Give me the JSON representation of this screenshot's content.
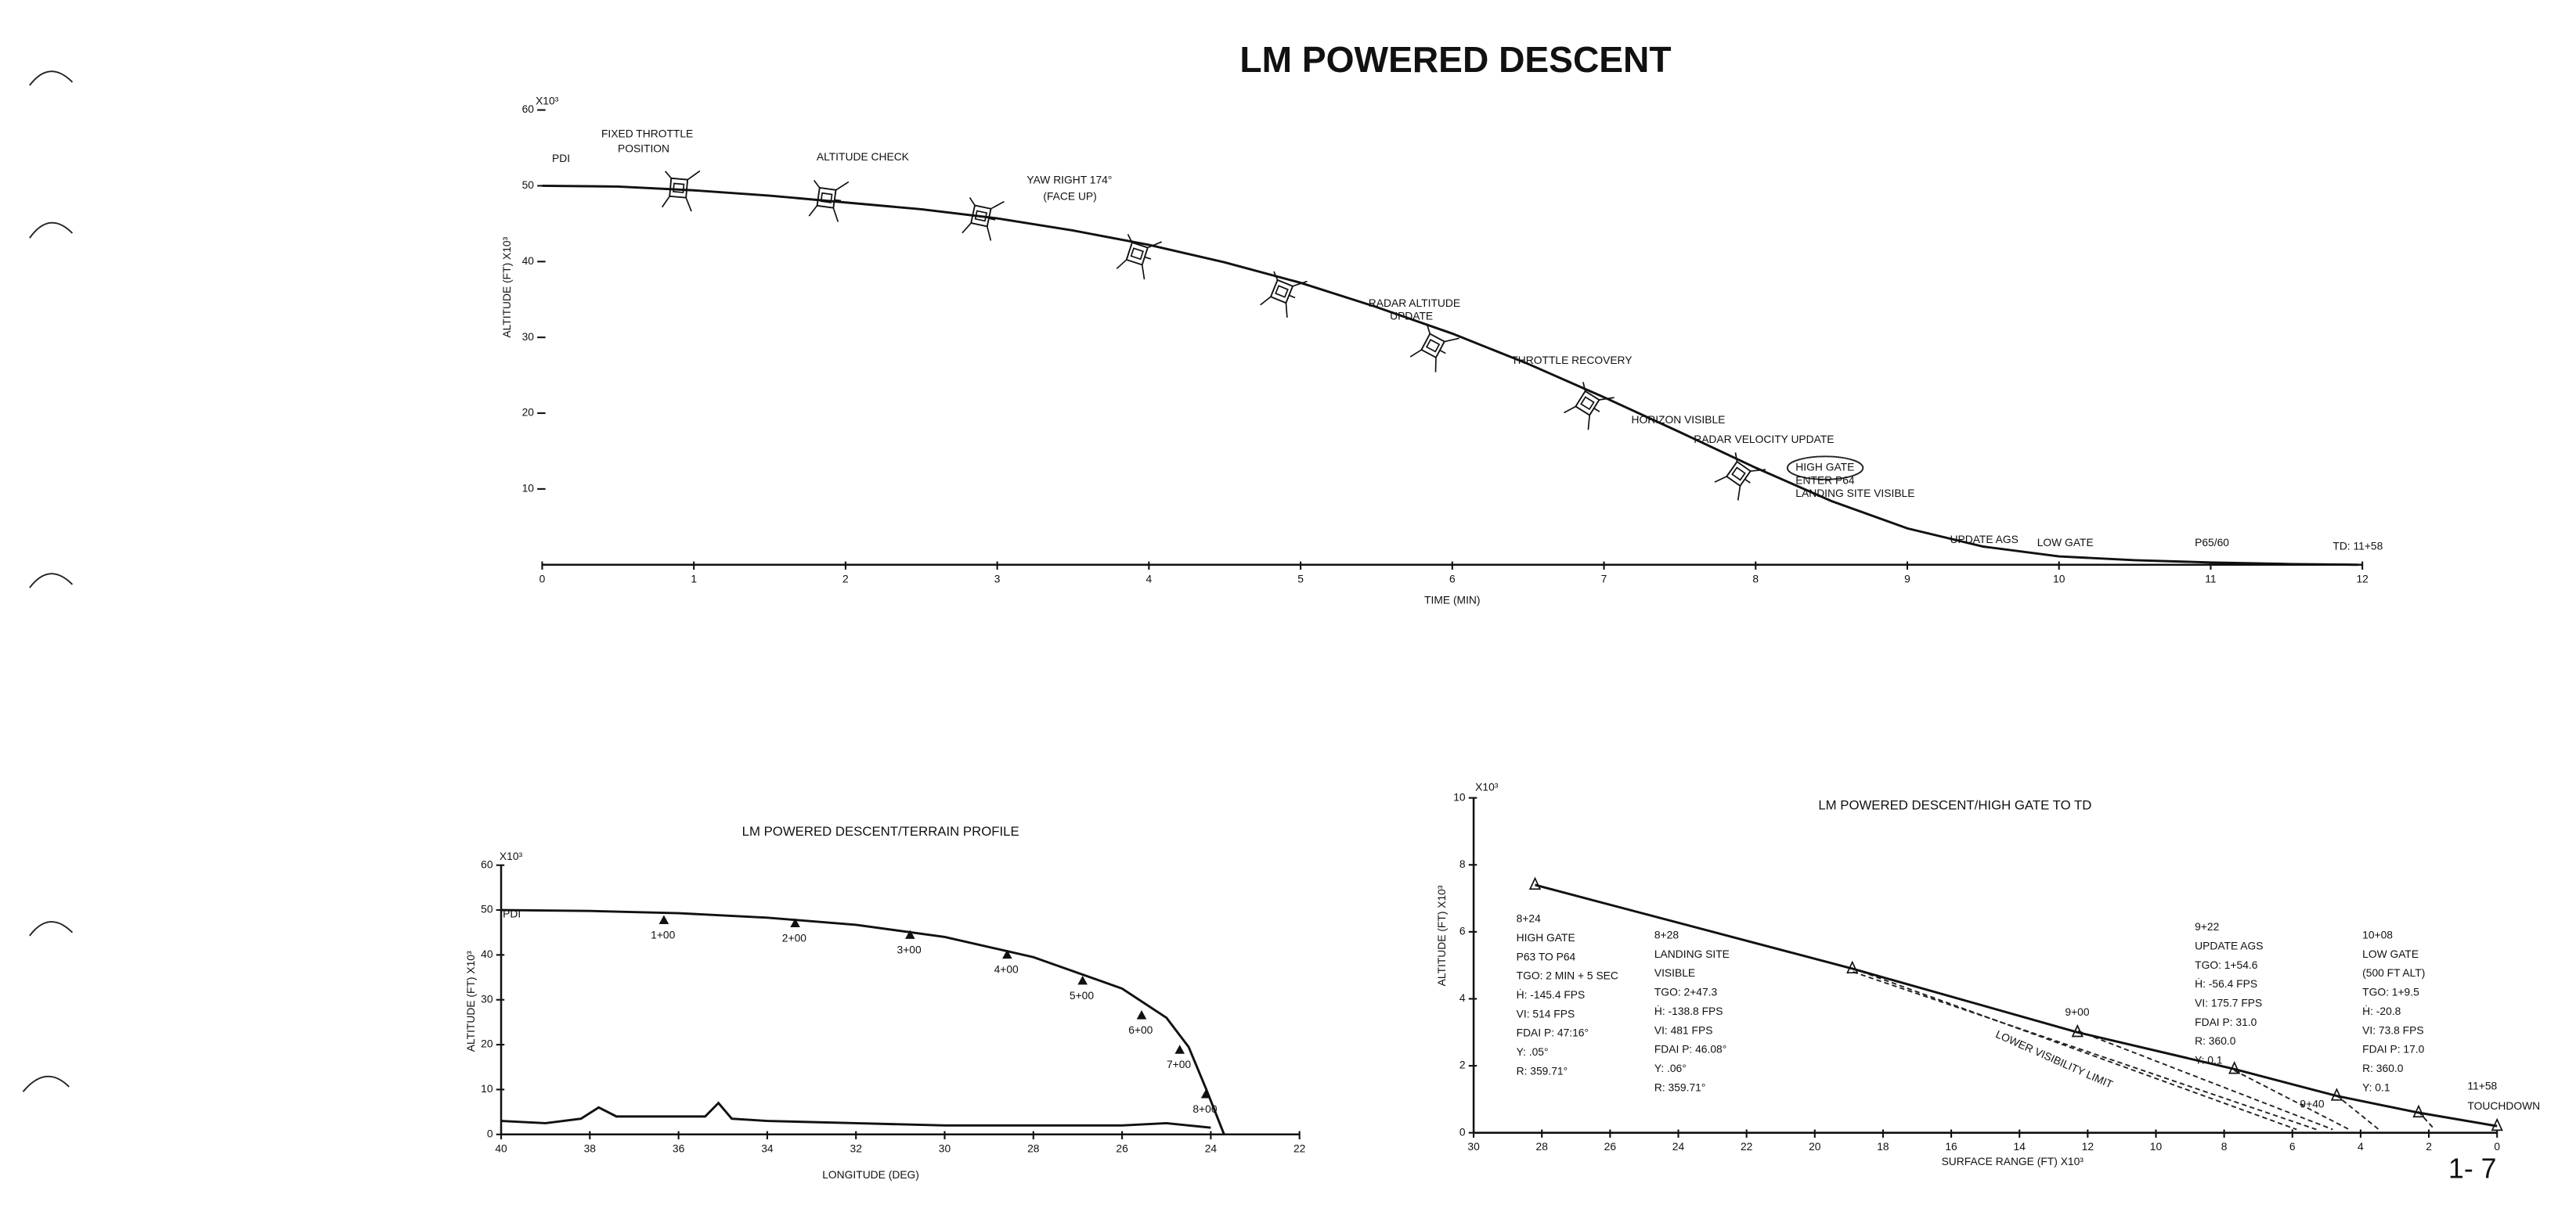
{
  "title": "LM  POWERED DESCENT",
  "page_number": "1- 7",
  "chart_data": [
    {
      "type": "line",
      "xlabel": "TIME (MIN)",
      "ylabel": "ALTITUDE (FT) X10³",
      "y_unit": "X10³",
      "color": "#111111",
      "xlim": [
        0,
        12
      ],
      "ylim": [
        0,
        60
      ],
      "xticks": [
        0,
        1,
        2,
        3,
        4,
        5,
        6,
        7,
        8,
        9,
        10,
        11,
        12
      ],
      "yticks": [
        10,
        20,
        30,
        40,
        50,
        60
      ],
      "series": [
        {
          "x": [
            0,
            0.5,
            1,
            1.5,
            2,
            2.5,
            3,
            3.5,
            4,
            4.5,
            5,
            5.5,
            6,
            6.5,
            7,
            7.5,
            8,
            8.5,
            9,
            9.5,
            10,
            10.5,
            11,
            11.5,
            11.97
          ],
          "values": [
            50,
            49.9,
            49.4,
            48.7,
            47.8,
            46.9,
            45.7,
            44.1,
            42.2,
            39.9,
            37.2,
            34.0,
            30.5,
            26.5,
            22.1,
            17.5,
            12.8,
            8.4,
            4.8,
            2.4,
            1.1,
            0.6,
            0.3,
            0.1,
            0
          ]
        }
      ],
      "annotations": [
        "PDI",
        "FIXED THROTTLE",
        "POSITION",
        "ALTITUDE CHECK",
        "YAW RIGHT 174°",
        "(FACE UP)",
        "RADAR ALTITUDE",
        "UPDATE",
        "THROTTLE RECOVERY",
        "HORIZON VISIBLE",
        "RADAR VELOCITY UPDATE",
        "HIGH GATE",
        "ENTER P64",
        "LANDING SITE VISIBLE",
        "UPDATE AGS",
        "LOW GATE",
        "P65/60",
        "TD:  11+58"
      ]
    },
    {
      "type": "line",
      "title": "LM POWERED DESCENT/TERRAIN PROFILE",
      "xlabel": "LONGITUDE (DEG)",
      "ylabel": "ALTITUDE (FT) X10³",
      "y_unit": "X10³",
      "color": "#111111",
      "xlim": [
        40,
        22
      ],
      "ylim": [
        0,
        60
      ],
      "xticks": [
        40,
        38,
        36,
        34,
        32,
        30,
        28,
        26,
        24,
        22
      ],
      "yticks": [
        0,
        10,
        20,
        30,
        40,
        50,
        60
      ],
      "series": [
        {
          "x": [
            40,
            38,
            36,
            34,
            32,
            30,
            28,
            26,
            25,
            24.5,
            24.1,
            23.9,
            23.7
          ],
          "values": [
            50,
            49.8,
            49.3,
            48.3,
            46.7,
            44,
            39.5,
            32.5,
            26,
            19.5,
            10,
            5,
            0
          ]
        },
        {
          "x": [
            40,
            39,
            38.2,
            37.8,
            37.4,
            36,
            35.4,
            35.1,
            34.8,
            34,
            32,
            30,
            28,
            26,
            25,
            24.5,
            24
          ],
          "values": [
            3,
            2.5,
            3.5,
            6,
            4,
            4,
            4,
            7,
            3.5,
            3,
            2.5,
            2,
            2,
            2,
            2.5,
            2,
            1.5
          ]
        }
      ],
      "markers": {
        "labels": [
          "1+00",
          "2+00",
          "3+00",
          "4+00",
          "5+00",
          "6+00",
          "7+00",
          "8+00"
        ],
        "x": [
          36.33,
          33.37,
          30.78,
          28.59,
          26.89,
          25.56,
          24.7,
          24.11
        ],
        "y": [
          47.6,
          46.9,
          44.3,
          39.9,
          34.1,
          26.4,
          18.7,
          8.8
        ]
      },
      "annotations": [
        "PDI"
      ]
    },
    {
      "type": "line",
      "title": "LM POWERED DESCENT/HIGH GATE TO TD",
      "xlabel": "SURFACE RANGE (FT) X10³",
      "ylabel": "ALTITUDE (FT) X10³",
      "y_unit": "X10³",
      "color": "#111111",
      "xlim": [
        30,
        0
      ],
      "ylim": [
        0,
        10
      ],
      "xticks": [
        30,
        28,
        26,
        24,
        22,
        20,
        18,
        16,
        14,
        12,
        10,
        8,
        6,
        4,
        2,
        0
      ],
      "yticks": [
        0,
        2,
        4,
        6,
        8,
        10
      ],
      "series": [
        {
          "x": [
            28.2,
            18.9,
            12.3,
            7.7,
            4.7,
            2.3,
            0
          ],
          "values": [
            7.4,
            4.9,
            3.0,
            1.9,
            1.1,
            0.6,
            0.2
          ]
        }
      ],
      "annotations": [
        "9+00",
        "9+40",
        "11+58",
        "TOUCHDOWN",
        "LOWER VISIBILITY LIMIT"
      ],
      "notes": [
        [
          "8+24",
          "HIGH GATE",
          "P63 TO P64",
          "TGO:  2 MIN + 5 SEC",
          "Ḣ: -145.4 FPS",
          "VI:  514 FPS",
          "FDAI P:  47:16°",
          "Y:  .05°",
          "R:  359.71°"
        ],
        [
          "8+28",
          "LANDING SITE",
          "  VISIBLE",
          "TGO:  2+47.3",
          "Ḣ:  -138.8 FPS",
          "VI:  481 FPS",
          "FDAI P:  46.08°",
          "Y:  .06°",
          "R:  359.71°"
        ],
        [
          "9+22",
          "UPDATE AGS",
          "TGO:  1+54.6",
          "Ḣ:  -56.4 FPS",
          "VI:  175.7 FPS",
          "FDAI P:  31.0",
          "R:  360.0",
          "Y:  0.1"
        ],
        [
          "10+08",
          "LOW GATE",
          "(500 FT ALT)",
          "TGO:  1+9.5",
          "Ḣ:  -20.8",
          "VI:  73.8 FPS",
          "FDAI P:  17.0",
          "R:  360.0",
          "Y:  0.1"
        ]
      ]
    }
  ]
}
